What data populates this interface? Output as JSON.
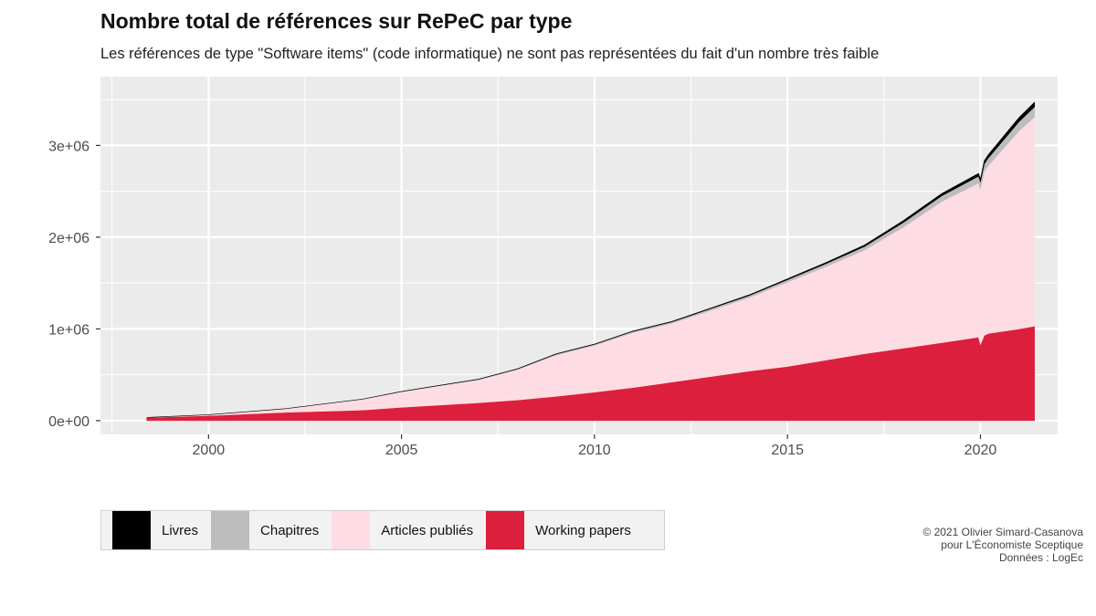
{
  "chart_data": {
    "type": "area",
    "stacked": true,
    "title": "Nombre total de références sur RePeC par type",
    "subtitle": "Les références de type \"Software items\" (code informatique) ne sont pas représentées du fait d'un nombre très faible",
    "xlabel": "",
    "ylabel": "",
    "xlim": [
      1997.2,
      2022.0
    ],
    "ylim": [
      -150000,
      3750000
    ],
    "x_ticks": [
      2000,
      2005,
      2010,
      2015,
      2020
    ],
    "x_tick_labels": [
      "2000",
      "2005",
      "2010",
      "2015",
      "2020"
    ],
    "y_ticks": [
      0,
      1000000,
      2000000,
      3000000
    ],
    "y_tick_labels": [
      "0e+00",
      "1e+06",
      "2e+06",
      "3e+06"
    ],
    "x": [
      1998.4,
      2000,
      2002,
      2004,
      2005,
      2006,
      2007,
      2008,
      2009,
      2010,
      2011,
      2012,
      2013,
      2014,
      2015,
      2016,
      2017,
      2018,
      2019,
      2019.95,
      2020.0,
      2020.1,
      2020.2,
      2021,
      2021.4
    ],
    "series": [
      {
        "name": "Working papers",
        "color": "#DC1F3C",
        "values": [
          35000,
          55000,
          90000,
          115000,
          145000,
          170000,
          195000,
          225000,
          265000,
          310000,
          360000,
          420000,
          480000,
          540000,
          590000,
          660000,
          730000,
          790000,
          850000,
          910000,
          830000,
          930000,
          950000,
          1000000,
          1030000
        ]
      },
      {
        "name": "Articles publiés",
        "color": "#FDDDE3",
        "values": [
          0,
          10000,
          40000,
          120000,
          170000,
          210000,
          250000,
          330000,
          450000,
          510000,
          600000,
          640000,
          720000,
          800000,
          920000,
          1020000,
          1130000,
          1320000,
          1540000,
          1680000,
          1700000,
          1790000,
          1830000,
          2160000,
          2280000
        ]
      },
      {
        "name": "Chapitres",
        "color": "#BDBDBD",
        "values": [
          0,
          0,
          0,
          0,
          2000,
          4000,
          6000,
          8000,
          10000,
          12000,
          14000,
          16000,
          19000,
          22000,
          26000,
          32000,
          40000,
          50000,
          62000,
          74000,
          74000,
          80000,
          82000,
          100000,
          110000
        ]
      },
      {
        "name": "Livres",
        "color": "#000000",
        "values": [
          0,
          0,
          0,
          0,
          1000,
          1000,
          2000,
          2000,
          3000,
          3000,
          4000,
          5000,
          6000,
          8000,
          10000,
          12000,
          15000,
          20000,
          25000,
          31000,
          31000,
          34000,
          36000,
          45000,
          50000
        ]
      }
    ],
    "legend": {
      "position": "bottom-left",
      "items": [
        {
          "label": "Livres",
          "color": "#000000"
        },
        {
          "label": "Chapitres",
          "color": "#BDBDBD"
        },
        {
          "label": "Articles publiés",
          "color": "#FDDDE3"
        },
        {
          "label": "Working papers",
          "color": "#DC1F3C"
        }
      ]
    },
    "grid": true,
    "panel_background": "#EBEBEB"
  },
  "caption": {
    "line1": "© 2021 Olivier Simard-Casanova",
    "line2": "pour L'Économiste Sceptique",
    "line3": "Données : LogEc"
  }
}
